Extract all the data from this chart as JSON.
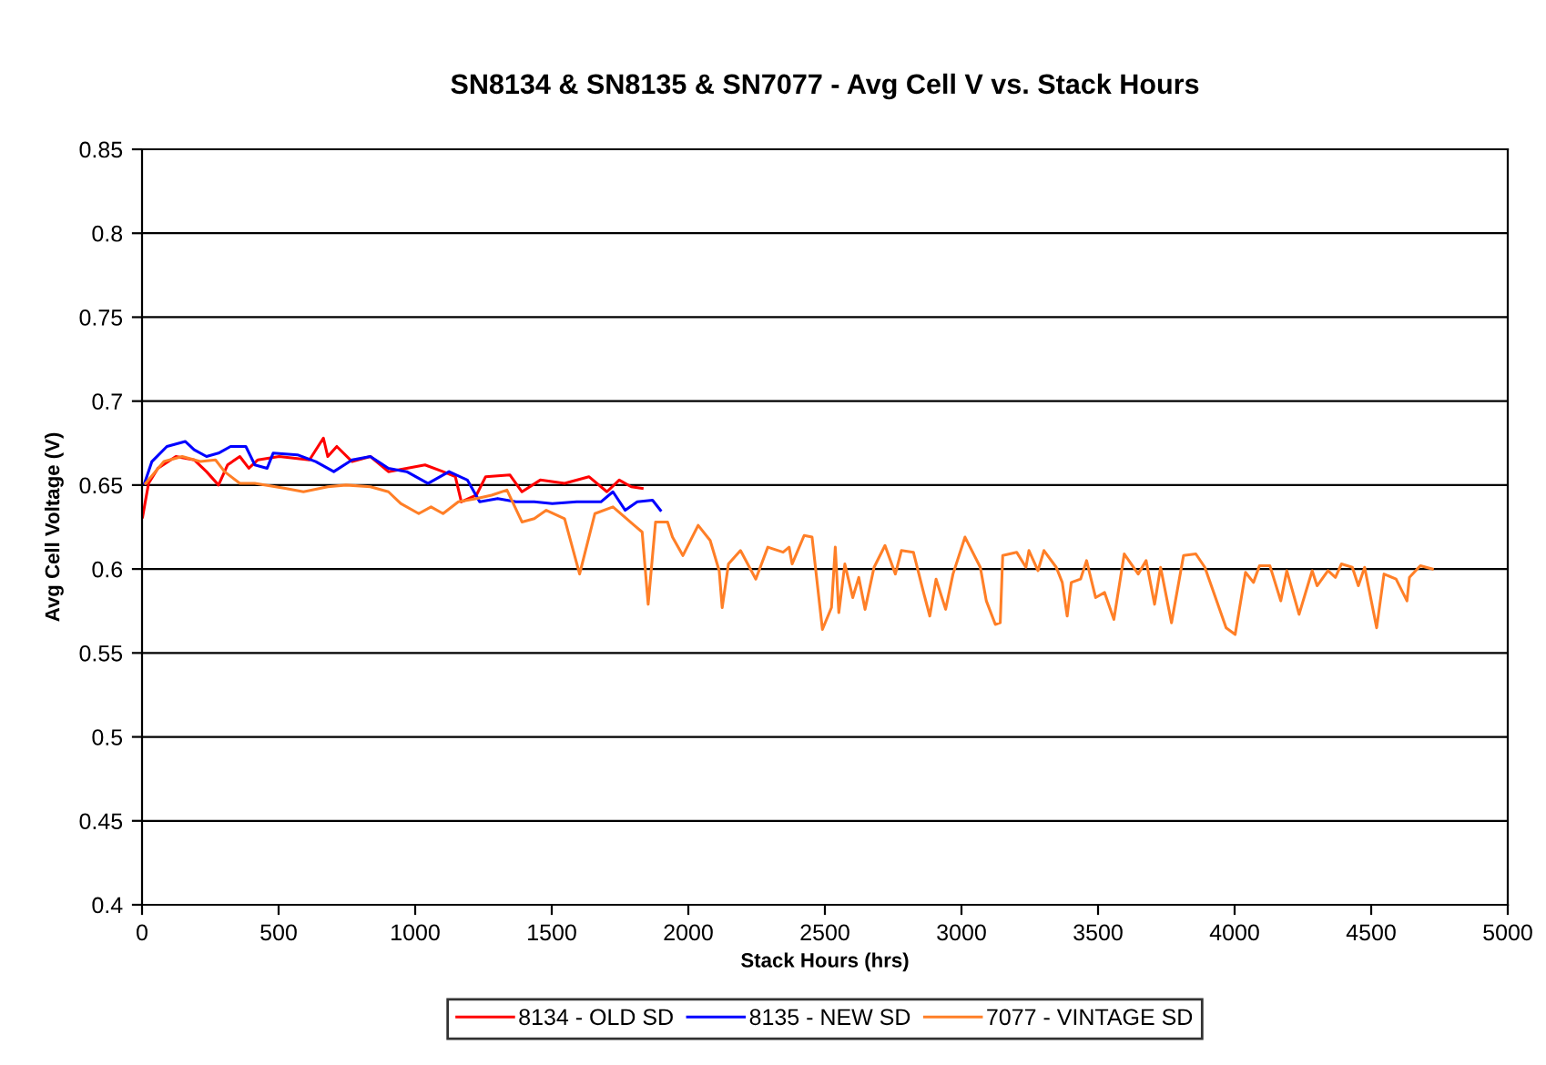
{
  "chart_data": {
    "type": "line",
    "title": "SN8134 & SN8135 & SN7077 - Avg Cell V vs. Stack Hours",
    "xlabel": "Stack Hours (hrs)",
    "ylabel": "Avg Cell Voltage (V)",
    "xlim": [
      0,
      5000
    ],
    "xticks": [
      0,
      500,
      1000,
      1500,
      2000,
      2500,
      3000,
      3500,
      4000,
      4500,
      5000
    ],
    "ylim": [
      0.4,
      0.85
    ],
    "yticks": [
      0.4,
      0.45,
      0.5,
      0.55,
      0.6,
      0.65,
      0.7,
      0.75,
      0.8,
      0.85
    ],
    "grid": "y",
    "legend": "bottom",
    "marker": "none",
    "line_style": "solid",
    "series": [
      {
        "name": "8134 - OLD SD",
        "color": "#ff0000",
        "x": [
          2,
          24,
          58,
          124,
          191,
          236,
          280,
          313,
          358,
          391,
          424,
          502,
          613,
          664,
          680,
          713,
          769,
          836,
          902,
          969,
          1036,
          1102,
          1147,
          1169,
          1224,
          1258,
          1347,
          1391,
          1458,
          1547,
          1636,
          1702,
          1747,
          1791,
          1831
        ],
        "values": [
          0.631,
          0.651,
          0.66,
          0.667,
          0.665,
          0.658,
          0.65,
          0.662,
          0.667,
          0.66,
          0.665,
          0.667,
          0.665,
          0.678,
          0.667,
          0.673,
          0.664,
          0.667,
          0.658,
          0.66,
          0.662,
          0.658,
          0.655,
          0.64,
          0.644,
          0.655,
          0.656,
          0.646,
          0.653,
          0.651,
          0.655,
          0.646,
          0.653,
          0.649,
          0.648
        ]
      },
      {
        "name": "8135 - NEW SD",
        "color": "#0000ff",
        "x": [
          9,
          36,
          91,
          158,
          191,
          236,
          280,
          324,
          380,
          413,
          458,
          480,
          569,
          636,
          702,
          769,
          836,
          902,
          969,
          1047,
          1124,
          1191,
          1236,
          1302,
          1369,
          1436,
          1502,
          1591,
          1680,
          1724,
          1769,
          1813,
          1869,
          1898
        ],
        "values": [
          0.651,
          0.664,
          0.673,
          0.676,
          0.671,
          0.667,
          0.669,
          0.673,
          0.673,
          0.662,
          0.66,
          0.669,
          0.668,
          0.664,
          0.658,
          0.665,
          0.667,
          0.66,
          0.658,
          0.651,
          0.658,
          0.653,
          0.64,
          0.642,
          0.64,
          0.64,
          0.639,
          0.64,
          0.64,
          0.646,
          0.635,
          0.64,
          0.641,
          0.635
        ]
      },
      {
        "name": "7077 - VINTAGE SD",
        "color": "#ff7f27",
        "x": [
          13,
          80,
          147,
          213,
          269,
          302,
          358,
          413,
          524,
          591,
          680,
          747,
          836,
          902,
          947,
          1013,
          1058,
          1102,
          1158,
          1224,
          1280,
          1336,
          1391,
          1436,
          1480,
          1547,
          1602,
          1658,
          1724,
          1802,
          1831,
          1853,
          1880,
          1924,
          1942,
          1980,
          2036,
          2080,
          2113,
          2124,
          2147,
          2191,
          2247,
          2291,
          2347,
          2369,
          2380,
          2424,
          2453,
          2491,
          2524,
          2538,
          2551,
          2573,
          2602,
          2624,
          2647,
          2680,
          2720,
          2758,
          2780,
          2824,
          2858,
          2884,
          2907,
          2942,
          2969,
          3013,
          3069,
          3091,
          3124,
          3142,
          3151,
          3202,
          3236,
          3247,
          3280,
          3302,
          3347,
          3369,
          3387,
          3402,
          3436,
          3458,
          3491,
          3524,
          3558,
          3596,
          3647,
          3676,
          3707,
          3729,
          3769,
          3813,
          3858,
          3891,
          3969,
          4002,
          4040,
          4069,
          4091,
          4129,
          4169,
          4191,
          4236,
          4284,
          4302,
          4342,
          4369,
          4391,
          4431,
          4453,
          4476,
          4520,
          4547,
          4591,
          4631,
          4640,
          4680,
          4724
        ],
        "values": [
          0.651,
          0.664,
          0.667,
          0.664,
          0.665,
          0.658,
          0.651,
          0.651,
          0.648,
          0.646,
          0.649,
          0.65,
          0.649,
          0.646,
          0.639,
          0.633,
          0.637,
          0.633,
          0.64,
          0.642,
          0.644,
          0.647,
          0.628,
          0.63,
          0.635,
          0.63,
          0.597,
          0.633,
          0.637,
          0.626,
          0.622,
          0.579,
          0.628,
          0.628,
          0.619,
          0.608,
          0.626,
          0.617,
          0.599,
          0.577,
          0.603,
          0.611,
          0.594,
          0.613,
          0.61,
          0.613,
          0.603,
          0.62,
          0.619,
          0.564,
          0.577,
          0.613,
          0.574,
          0.603,
          0.583,
          0.595,
          0.576,
          0.601,
          0.614,
          0.597,
          0.611,
          0.61,
          0.588,
          0.572,
          0.594,
          0.576,
          0.597,
          0.619,
          0.601,
          0.581,
          0.567,
          0.568,
          0.608,
          0.61,
          0.601,
          0.611,
          0.599,
          0.611,
          0.601,
          0.592,
          0.572,
          0.592,
          0.594,
          0.605,
          0.583,
          0.586,
          0.57,
          0.609,
          0.597,
          0.605,
          0.579,
          0.601,
          0.568,
          0.608,
          0.609,
          0.601,
          0.565,
          0.561,
          0.598,
          0.592,
          0.602,
          0.602,
          0.581,
          0.599,
          0.573,
          0.599,
          0.59,
          0.599,
          0.595,
          0.603,
          0.601,
          0.59,
          0.601,
          0.565,
          0.597,
          0.594,
          0.581,
          0.595,
          0.602,
          0.6
        ]
      }
    ]
  }
}
